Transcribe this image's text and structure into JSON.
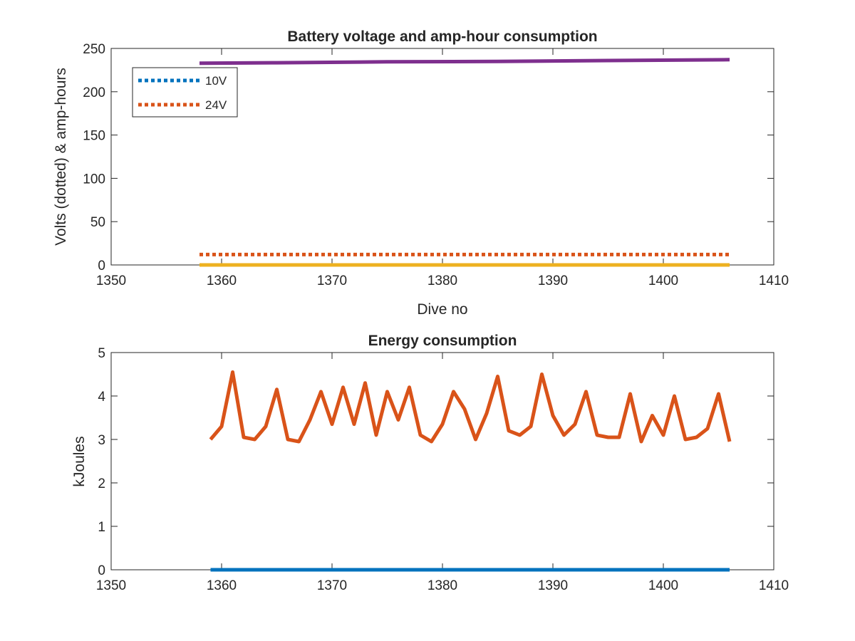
{
  "chart_data": [
    {
      "type": "line",
      "title": "Battery voltage and amp-hour consumption",
      "xlabel": "Dive no",
      "ylabel": "Volts (dotted) & amp-hours",
      "xlim": [
        1350,
        1410
      ],
      "ylim": [
        0,
        250
      ],
      "xticks": [
        "1350",
        "1360",
        "1370",
        "1380",
        "1390",
        "1400",
        "1410"
      ],
      "yticks": [
        "0",
        "50",
        "100",
        "150",
        "200",
        "250"
      ],
      "grid": false,
      "legend_position": "top-left",
      "series": [
        {
          "name": "10V",
          "style": "dotted",
          "color": "#0072BD",
          "x": [
            1358,
            1406
          ],
          "y": [
            0,
            0
          ]
        },
        {
          "name": "24V",
          "style": "dotted",
          "color": "#D95319",
          "x": [
            1358,
            1406
          ],
          "y": [
            12,
            12
          ]
        },
        {
          "style": "solid",
          "color": "#EDB120",
          "x": [
            1358,
            1406
          ],
          "y": [
            0,
            0
          ]
        },
        {
          "style": "solid",
          "color": "#7E2F8E",
          "x": [
            1358,
            1365,
            1375,
            1385,
            1395,
            1406
          ],
          "y": [
            233,
            233.5,
            234.5,
            235,
            236,
            237
          ]
        }
      ]
    },
    {
      "type": "line",
      "title": "Energy consumption",
      "xlabel": "",
      "ylabel": "kJoules",
      "xlim": [
        1350,
        1410
      ],
      "ylim": [
        0,
        5
      ],
      "xticks": [
        "1350",
        "1360",
        "1370",
        "1380",
        "1390",
        "1400",
        "1410"
      ],
      "yticks": [
        "0",
        "1",
        "2",
        "3",
        "4",
        "5"
      ],
      "grid": false,
      "series": [
        {
          "style": "solid",
          "color": "#0072BD",
          "x": [
            1359,
            1406
          ],
          "y": [
            0,
            0
          ]
        },
        {
          "style": "solid",
          "color": "#D95319",
          "x": [
            1359,
            1360,
            1361,
            1362,
            1363,
            1364,
            1365,
            1366,
            1367,
            1368,
            1369,
            1370,
            1371,
            1372,
            1373,
            1374,
            1375,
            1376,
            1377,
            1378,
            1379,
            1380,
            1381,
            1382,
            1383,
            1384,
            1385,
            1386,
            1387,
            1388,
            1389,
            1390,
            1391,
            1392,
            1393,
            1394,
            1395,
            1396,
            1397,
            1398,
            1399,
            1400,
            1401,
            1402,
            1403,
            1404,
            1405,
            1406
          ],
          "y": [
            3.0,
            3.3,
            4.55,
            3.05,
            3.0,
            3.3,
            4.15,
            3.0,
            2.95,
            3.45,
            4.1,
            3.35,
            4.2,
            3.35,
            4.3,
            3.1,
            4.1,
            3.45,
            4.2,
            3.1,
            2.95,
            3.35,
            4.1,
            3.7,
            3.0,
            3.6,
            4.45,
            3.2,
            3.1,
            3.3,
            4.5,
            3.55,
            3.1,
            3.35,
            4.1,
            3.1,
            3.05,
            3.05,
            4.05,
            2.95,
            3.55,
            3.1,
            4.0,
            3.0,
            3.05,
            3.25,
            4.05,
            2.95
          ]
        }
      ]
    }
  ]
}
